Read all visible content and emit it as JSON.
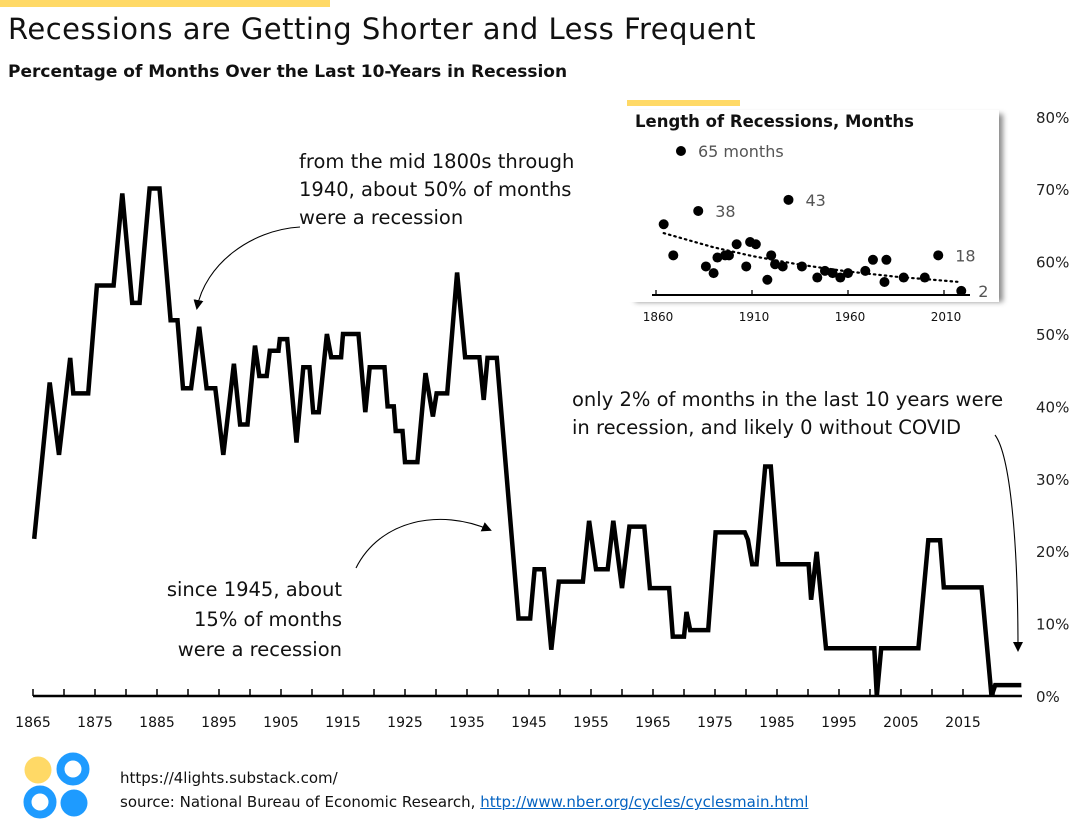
{
  "header": {
    "title": "Recessions are Getting Shorter and Less Frequent",
    "subtitle": "Percentage of Months Over the Last 10-Years in Recession"
  },
  "colors": {
    "accent_yellow": "#FFD966",
    "logo_blue": "#1E9BFF",
    "line": "#000000",
    "link": "#0563C1"
  },
  "annotations": {
    "top": [
      "from the mid 1800s through",
      "1940, about 50% of months",
      "were a recession"
    ],
    "middle": [
      "since 1945, about",
      "15% of months",
      "were a recession"
    ],
    "right": [
      "only 2% of months in the last 10 years were",
      "in recession, and likely 0 without COVID"
    ]
  },
  "footer": {
    "site": "https://4lights.substack.com/",
    "source_prefix": "source: National Bureau of Economic Research, ",
    "source_link": "http://www.nber.org/cycles/cyclesmain.html"
  },
  "chart_data": [
    {
      "type": "line",
      "title": "Percentage of Months Over the Last 10-Years in Recession",
      "xlabel": "",
      "ylabel": "",
      "xlim": [
        1865,
        2024.5
      ],
      "ylim": [
        0,
        80
      ],
      "x_tick_labels": [
        "1865",
        "1875",
        "1885",
        "1895",
        "1905",
        "1915",
        "1925",
        "1935",
        "1945",
        "1955",
        "1965",
        "1975",
        "1985",
        "1995",
        "2005",
        "2015"
      ],
      "y_tick_labels": [
        "0%",
        "10%",
        "20%",
        "30%",
        "40%",
        "50%",
        "60%",
        "70%",
        "80%"
      ],
      "grid": false,
      "series": [
        {
          "name": "% of months in recession (trailing 10 years)",
          "points": [
            [
              1865.2,
              21.7
            ],
            [
              1867.7,
              43.3
            ],
            [
              1869.2,
              33.3
            ],
            [
              1871,
              46.7
            ],
            [
              1871.5,
              41.8
            ],
            [
              1873.9,
              41.8
            ],
            [
              1875.3,
              56.7
            ],
            [
              1878,
              56.7
            ],
            [
              1879.4,
              69.4
            ],
            [
              1881,
              54.3
            ],
            [
              1882.2,
              54.3
            ],
            [
              1883.8,
              70.1
            ],
            [
              1885.4,
              70.1
            ],
            [
              1887.2,
              51.9
            ],
            [
              1888.3,
              51.9
            ],
            [
              1889.2,
              42.5
            ],
            [
              1890.5,
              42.5
            ],
            [
              1891.8,
              51
            ],
            [
              1893,
              42.5
            ],
            [
              1894.4,
              42.5
            ],
            [
              1895.7,
              33.3
            ],
            [
              1897.4,
              45.9
            ],
            [
              1898.4,
              37.5
            ],
            [
              1899.6,
              37.5
            ],
            [
              1900.8,
              48.4
            ],
            [
              1901.5,
              44.2
            ],
            [
              1902.7,
              44.2
            ],
            [
              1903.2,
              47.7
            ],
            [
              1904.6,
              47.7
            ],
            [
              1904.8,
              49.3
            ],
            [
              1906,
              49.3
            ],
            [
              1907.5,
              35
            ],
            [
              1908.6,
              45.4
            ],
            [
              1909.6,
              45.4
            ],
            [
              1910.2,
              39.2
            ],
            [
              1911.1,
              39.2
            ],
            [
              1912.4,
              50
            ],
            [
              1913.1,
              46.8
            ],
            [
              1914.7,
              46.8
            ],
            [
              1915,
              50
            ],
            [
              1917.5,
              50
            ],
            [
              1918.6,
              39.2
            ],
            [
              1919.3,
              45.4
            ],
            [
              1921.7,
              45.4
            ],
            [
              1922.2,
              40
            ],
            [
              1923.2,
              40
            ],
            [
              1923.5,
              36.6
            ],
            [
              1924.6,
              36.6
            ],
            [
              1925,
              32.3
            ],
            [
              1927,
              32.3
            ],
            [
              1928.3,
              44.6
            ],
            [
              1929.5,
              38.6
            ],
            [
              1930.1,
              41.8
            ],
            [
              1931.8,
              41.8
            ],
            [
              1933.4,
              58.5
            ],
            [
              1934.7,
              46.8
            ],
            [
              1937,
              46.8
            ],
            [
              1937.7,
              40.9
            ],
            [
              1938.3,
              46.7
            ],
            [
              1939.8,
              46.7
            ],
            [
              1943.3,
              10.7
            ],
            [
              1945.2,
              10.7
            ],
            [
              1945.9,
              17.5
            ],
            [
              1947.4,
              17.5
            ],
            [
              1948.6,
              6.4
            ],
            [
              1949.8,
              15.8
            ],
            [
              1953.7,
              15.8
            ],
            [
              1954.7,
              24.2
            ],
            [
              1955.8,
              17.5
            ],
            [
              1957.7,
              17.5
            ],
            [
              1958.6,
              24.2
            ],
            [
              1960,
              14.9
            ],
            [
              1961.2,
              23.4
            ],
            [
              1963.6,
              23.4
            ],
            [
              1964.5,
              14.9
            ],
            [
              1967.6,
              14.9
            ],
            [
              1968.2,
              8.2
            ],
            [
              1970,
              8.2
            ],
            [
              1970.4,
              11.6
            ],
            [
              1971,
              9.1
            ],
            [
              1973.9,
              9.1
            ],
            [
              1975.1,
              22.6
            ],
            [
              1979.8,
              22.6
            ],
            [
              1980.3,
              21.6
            ],
            [
              1981,
              18.2
            ],
            [
              1981.7,
              18.2
            ],
            [
              1983.1,
              31.7
            ],
            [
              1984,
              31.7
            ],
            [
              1985.2,
              18.2
            ],
            [
              1990.1,
              18.2
            ],
            [
              1990.5,
              13.3
            ],
            [
              1991.4,
              19.9
            ],
            [
              1992.9,
              6.6
            ],
            [
              2000.7,
              6.6
            ],
            [
              2001.1,
              0
            ],
            [
              2001.8,
              6.6
            ],
            [
              2007.8,
              6.6
            ],
            [
              2009.4,
              21.5
            ],
            [
              2011.3,
              21.5
            ],
            [
              2011.9,
              15
            ],
            [
              2018,
              15
            ],
            [
              2019.6,
              0
            ],
            [
              2020.2,
              1.5
            ],
            [
              2024.4,
              1.5
            ]
          ]
        }
      ]
    },
    {
      "type": "scatter",
      "title": "Length of Recessions, Months",
      "xlim": [
        1860,
        2026
      ],
      "x_tick_labels": [
        "1860",
        "1910",
        "1960",
        "2010"
      ],
      "series": [
        {
          "name": "Recession length (months)",
          "points": [
            [
              1864,
              32
            ],
            [
              1869,
              18
            ],
            [
              1873,
              65
            ],
            [
              1882,
              38
            ],
            [
              1886,
              13
            ],
            [
              1890,
              10
            ],
            [
              1892,
              17
            ],
            [
              1896,
              18
            ],
            [
              1898,
              18
            ],
            [
              1902,
              23
            ],
            [
              1907,
              13
            ],
            [
              1909,
              24
            ],
            [
              1912,
              23
            ],
            [
              1918,
              7
            ],
            [
              1920,
              18
            ],
            [
              1922,
              14
            ],
            [
              1926,
              13
            ],
            [
              1929,
              43
            ],
            [
              1936,
              13
            ],
            [
              1944,
              8
            ],
            [
              1948,
              11
            ],
            [
              1952,
              10
            ],
            [
              1956,
              8
            ],
            [
              1960,
              10
            ],
            [
              1969,
              11
            ],
            [
              1973,
              16
            ],
            [
              1979,
              6
            ],
            [
              1980,
              16
            ],
            [
              1989,
              8
            ],
            [
              2000,
              8
            ],
            [
              2007,
              18
            ],
            [
              2019,
              2
            ]
          ]
        }
      ],
      "trendline": {
        "type": "exponential",
        "style": "dotted",
        "points": [
          [
            1864,
            28
          ],
          [
            1890,
            21.6
          ],
          [
            1910,
            17.7
          ],
          [
            1935,
            13.8
          ],
          [
            1960,
            10.7
          ],
          [
            1985,
            8.4
          ],
          [
            2017,
            6.1
          ]
        ]
      },
      "point_labels": [
        {
          "year": 1873,
          "months": 65,
          "text": "65 months"
        },
        {
          "year": 1882,
          "months": 38,
          "text": "38"
        },
        {
          "year": 1929,
          "months": 43,
          "text": "43"
        },
        {
          "year": 2007,
          "months": 18,
          "text": "18"
        },
        {
          "year": 2019,
          "months": 2,
          "text": "2"
        }
      ]
    }
  ]
}
